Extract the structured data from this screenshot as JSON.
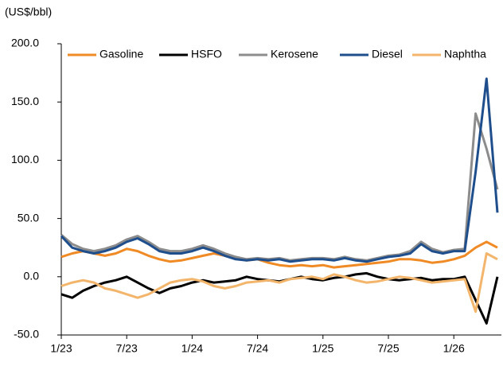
{
  "chart_data": {
    "type": "line",
    "y_label": "(US$/bbl)",
    "categories": [
      "1/23",
      "2/23",
      "3/23",
      "4/23",
      "5/23",
      "6/23",
      "7/23",
      "8/23",
      "9/23",
      "10/23",
      "11/23",
      "12/23",
      "1/24",
      "2/24",
      "3/24",
      "4/24",
      "5/24",
      "6/24",
      "7/24",
      "8/24",
      "9/24",
      "10/24",
      "11/24",
      "12/24",
      "1/25",
      "2/25",
      "3/25",
      "4/25",
      "5/25",
      "6/25",
      "7/25",
      "8/25",
      "9/25",
      "10/25",
      "11/25",
      "12/25",
      "1/26",
      "2/26",
      "3/26",
      "4/26",
      "5/26"
    ],
    "series": [
      {
        "name": "Gasoline",
        "color": "#f08a24",
        "values": [
          17,
          20,
          22,
          20,
          18,
          20,
          24,
          22,
          18,
          15,
          13,
          14,
          16,
          18,
          20,
          18,
          16,
          14,
          15,
          12,
          10,
          9,
          10,
          9,
          10,
          8,
          9,
          10,
          11,
          12,
          13,
          15,
          15,
          14,
          12,
          13,
          15,
          18,
          25,
          30,
          25
        ]
      },
      {
        "name": "HSFO",
        "color": "#000000",
        "values": [
          -15,
          -18,
          -12,
          -8,
          -5,
          -3,
          0,
          -5,
          -10,
          -14,
          -10,
          -8,
          -5,
          -3,
          -5,
          -4,
          -3,
          0,
          -2,
          -3,
          -4,
          -2,
          0,
          -2,
          -3,
          -1,
          0,
          2,
          3,
          0,
          -2,
          -3,
          -2,
          -1,
          -3,
          -2,
          -2,
          0,
          -20,
          -40,
          0
        ]
      },
      {
        "name": "Kerosene",
        "color": "#8c8c8c",
        "values": [
          36,
          28,
          24,
          22,
          24,
          27,
          32,
          35,
          30,
          24,
          22,
          22,
          24,
          27,
          24,
          20,
          17,
          15,
          16,
          15,
          16,
          14,
          15,
          16,
          16,
          15,
          17,
          15,
          14,
          16,
          18,
          19,
          22,
          30,
          24,
          21,
          23,
          24,
          140,
          110,
          75
        ]
      },
      {
        "name": "Diesel",
        "color": "#1f4e8c",
        "values": [
          35,
          25,
          22,
          20,
          22,
          25,
          30,
          33,
          28,
          22,
          20,
          20,
          22,
          25,
          22,
          18,
          15,
          14,
          15,
          14,
          15,
          13,
          14,
          15,
          15,
          14,
          16,
          14,
          13,
          15,
          17,
          18,
          20,
          28,
          22,
          20,
          22,
          22,
          90,
          170,
          55
        ]
      },
      {
        "name": "Naphtha",
        "color": "#f2b56b",
        "values": [
          -8,
          -5,
          -3,
          -5,
          -10,
          -12,
          -15,
          -18,
          -15,
          -10,
          -5,
          -3,
          -2,
          -4,
          -8,
          -10,
          -8,
          -5,
          -4,
          -3,
          -5,
          -2,
          -1,
          0,
          -2,
          2,
          0,
          -3,
          -5,
          -4,
          -2,
          0,
          -1,
          -3,
          -5,
          -4,
          -3,
          -2,
          -30,
          20,
          15
        ]
      }
    ],
    "ylim": [
      -50,
      200
    ],
    "yticks": [
      {
        "value": -50,
        "label": "-50.0"
      },
      {
        "value": 0,
        "label": "0.0"
      },
      {
        "value": 50,
        "label": "50.0"
      },
      {
        "value": 100,
        "label": "100.0"
      },
      {
        "value": 150,
        "label": "150.0"
      },
      {
        "value": 200,
        "label": "200.0"
      }
    ],
    "xticks": [
      "1/23",
      "7/23",
      "1/24",
      "7/24",
      "1/25",
      "7/25",
      "1/26"
    ],
    "legend": "top"
  }
}
